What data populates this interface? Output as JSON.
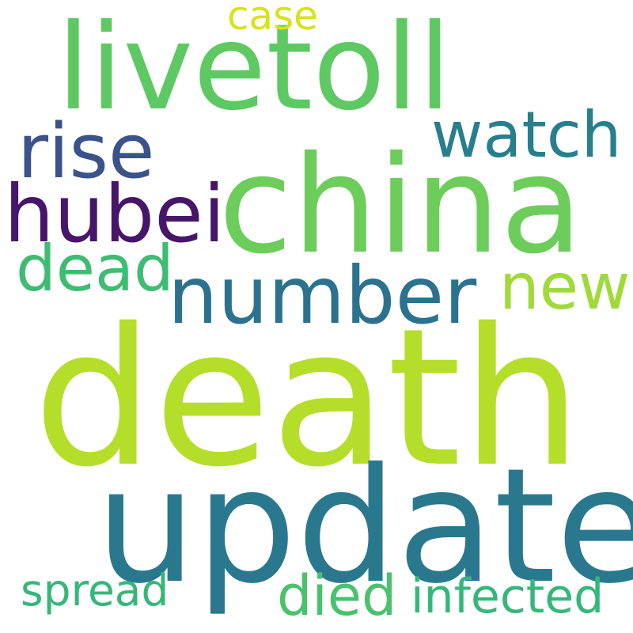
{
  "words": [
    {
      "text": "death",
      "color": "#b5de2b"
    },
    {
      "text": "update",
      "color": "#2a788e"
    },
    {
      "text": "china",
      "color": "#6ccd5a"
    },
    {
      "text": "livetoll",
      "color": "#5ec962"
    },
    {
      "text": "number",
      "color": "#2c728e"
    },
    {
      "text": "rise",
      "color": "#3b528b"
    },
    {
      "text": "hubei",
      "color": "#46166b"
    },
    {
      "text": "watch",
      "color": "#277f8e"
    },
    {
      "text": "dead",
      "color": "#3fbc73"
    },
    {
      "text": "new",
      "color": "#a0da39"
    },
    {
      "text": "case",
      "color": "#d8e219"
    },
    {
      "text": "spread",
      "color": "#35b779"
    },
    {
      "text": "died",
      "color": "#4ac16d"
    },
    {
      "text": "infected",
      "color": "#35b779"
    }
  ]
}
